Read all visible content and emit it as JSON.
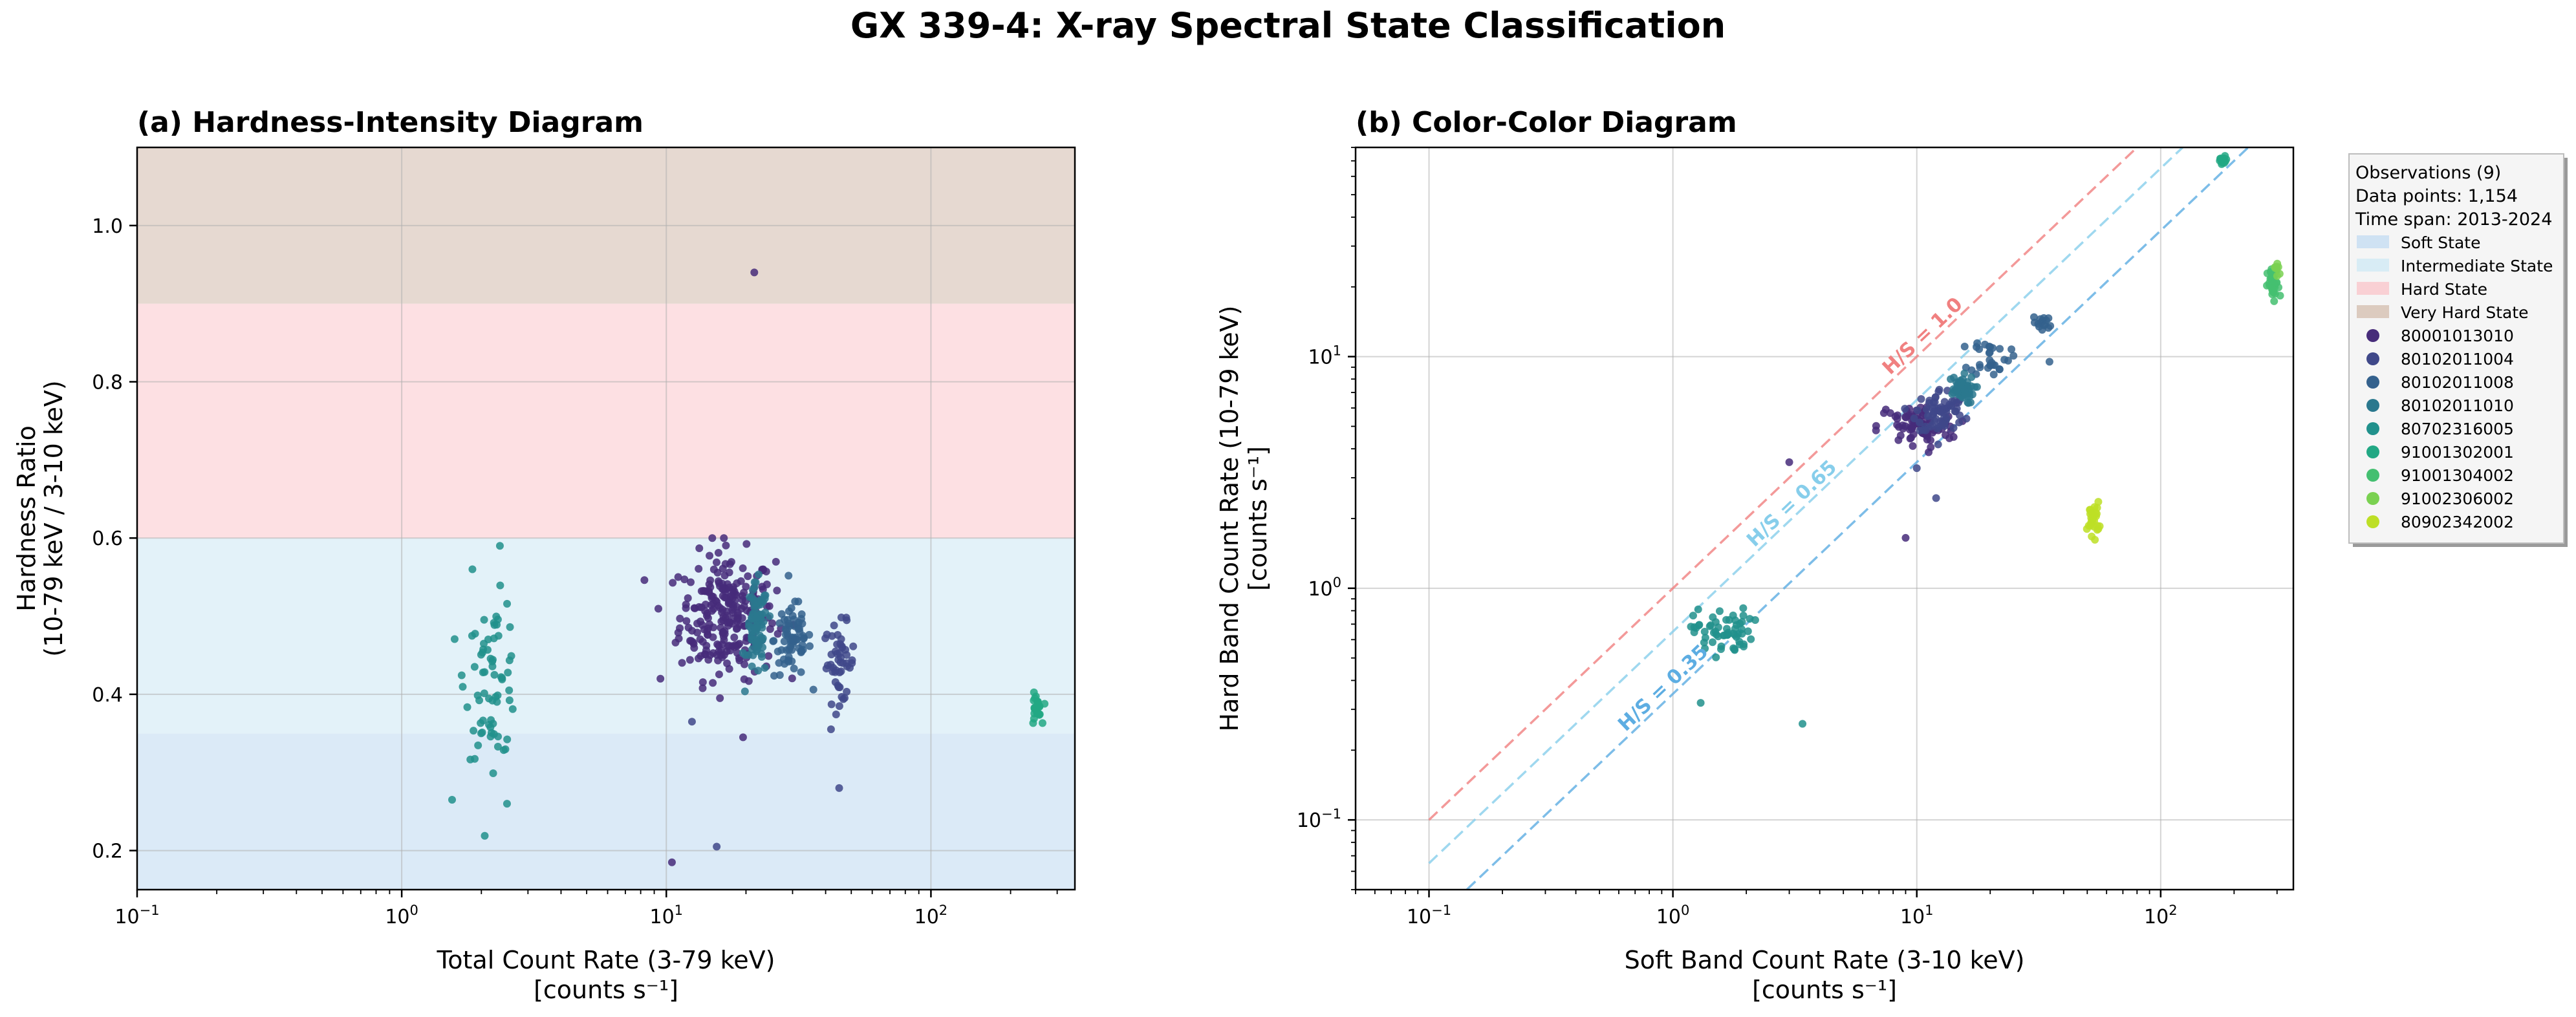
{
  "suptitle": "GX 339-4: X-ray Spectral State Classification",
  "chart_data": [
    {
      "type": "scatter",
      "title": "(a) Hardness-Intensity Diagram",
      "xlabel_line1": "Total Count Rate (3-79 keV)",
      "xlabel_line2": "[counts s⁻¹]",
      "ylabel_line1": "Hardness Ratio",
      "ylabel_line2": "(10-79 keV / 3-10 keV)",
      "xscale": "log",
      "xlim": [
        0.1,
        350
      ],
      "ylim": [
        0.15,
        1.1
      ],
      "xticks": [
        {
          "v": 0.1,
          "b": "10",
          "e": "−1"
        },
        {
          "v": 1,
          "b": "10",
          "e": "0"
        },
        {
          "v": 10,
          "b": "10",
          "e": "1"
        },
        {
          "v": 100,
          "b": "10",
          "e": "2"
        }
      ],
      "yticks": [
        {
          "v": 0.2,
          "label": "0.2"
        },
        {
          "v": 0.4,
          "label": "0.4"
        },
        {
          "v": 0.6,
          "label": "0.6"
        },
        {
          "v": 0.8,
          "label": "0.8"
        },
        {
          "v": 1.0,
          "label": "1.0"
        }
      ],
      "grid": true,
      "state_bands": [
        {
          "name": "Soft State",
          "y0": 0.15,
          "y1": 0.35,
          "color": "#dbeaf7"
        },
        {
          "name": "Intermediate State",
          "y0": 0.35,
          "y1": 0.6,
          "color": "#e3f2f9"
        },
        {
          "name": "Hard State",
          "y0": 0.6,
          "y1": 0.9,
          "color": "#fde0e3"
        },
        {
          "name": "Very Hard State",
          "y0": 0.9,
          "y1": 1.1,
          "color": "#e6d9d1"
        }
      ],
      "clusters": [
        {
          "obsid": "80001013010",
          "x": 17,
          "y": 0.5,
          "sx": 0.09,
          "sy": 0.04,
          "n": 260
        },
        {
          "obsid": "80102011004",
          "x": 45,
          "y": 0.44,
          "sx": 0.03,
          "sy": 0.025,
          "n": 50
        },
        {
          "obsid": "80102011008",
          "x": 30,
          "y": 0.47,
          "sx": 0.035,
          "sy": 0.025,
          "n": 70
        },
        {
          "obsid": "80102011010",
          "x": 22,
          "y": 0.48,
          "sx": 0.02,
          "sy": 0.03,
          "n": 80
        },
        {
          "obsid": "80702316005",
          "x": 2.2,
          "y": 0.42,
          "sx": 0.05,
          "sy": 0.05,
          "n": 70
        },
        {
          "obsid": "91001302001",
          "x": 250,
          "y": 0.38,
          "sx": 0.01,
          "sy": 0.01,
          "n": 25
        }
      ],
      "outliers": [
        {
          "x": 21.5,
          "y": 0.94,
          "obsid": "80001013010"
        },
        {
          "x": 10.5,
          "y": 0.185,
          "obsid": "80001013010"
        },
        {
          "x": 15.5,
          "y": 0.205,
          "obsid": "80102011004"
        },
        {
          "x": 16.5,
          "y": 0.6,
          "obsid": "80001013010"
        },
        {
          "x": 45,
          "y": 0.28,
          "obsid": "80102011004"
        },
        {
          "x": 9.5,
          "y": 0.42,
          "obsid": "80001013010"
        },
        {
          "x": 2.35,
          "y": 0.59,
          "obsid": "80702316005"
        },
        {
          "x": 1.55,
          "y": 0.265,
          "obsid": "80702316005"
        },
        {
          "x": 2.5,
          "y": 0.26,
          "obsid": "80702316005"
        },
        {
          "x": 1.85,
          "y": 0.56,
          "obsid": "80702316005"
        },
        {
          "x": 19.5,
          "y": 0.345,
          "obsid": "80001013010"
        },
        {
          "x": 12.5,
          "y": 0.365,
          "obsid": "80102011004"
        }
      ]
    },
    {
      "type": "scatter",
      "title": "(b) Color-Color Diagram",
      "xlabel_line1": "Soft Band Count Rate (3-10 keV)",
      "xlabel_line2": "[counts s⁻¹]",
      "ylabel_line1": "Hard Band Count Rate (10-79 keV)",
      "ylabel_line2": "[counts s⁻¹]",
      "xscale": "log",
      "yscale": "log",
      "xlim": [
        0.05,
        350
      ],
      "ylim": [
        0.05,
        80
      ],
      "xticks": [
        {
          "v": 0.1,
          "b": "10",
          "e": "−1"
        },
        {
          "v": 1,
          "b": "10",
          "e": "0"
        },
        {
          "v": 10,
          "b": "10",
          "e": "1"
        },
        {
          "v": 100,
          "b": "10",
          "e": "2"
        }
      ],
      "yticks": [
        {
          "v": 0.1,
          "b": "10",
          "e": "−1"
        },
        {
          "v": 1,
          "b": "10",
          "e": "0"
        },
        {
          "v": 10,
          "b": "10",
          "e": "1"
        }
      ],
      "grid": true,
      "ratio_lines": [
        {
          "ratio": 1.0,
          "label": "H/S = 1.0",
          "color": "#f08080",
          "label_x": 11
        },
        {
          "ratio": 0.65,
          "label": "H/S = 0.65",
          "color": "#87ceeb",
          "label_x": 3.2
        },
        {
          "ratio": 0.35,
          "label": "H/S = 0.35",
          "color": "#5dade2",
          "label_x": 0.95
        }
      ],
      "clusters": [
        {
          "obsid": "80001013010",
          "x": 10,
          "y": 5,
          "sx": 0.08,
          "sy": 0.05,
          "n": 80
        },
        {
          "obsid": "80102011004",
          "x": 12.5,
          "y": 5.8,
          "sx": 0.05,
          "sy": 0.05,
          "n": 70
        },
        {
          "obsid": "80102011008",
          "x": 20,
          "y": 10,
          "sx": 0.04,
          "sy": 0.04,
          "n": 30
        },
        {
          "obsid": "80102011010",
          "x": 15,
          "y": 7.2,
          "sx": 0.03,
          "sy": 0.03,
          "n": 50
        },
        {
          "obsid": "80702316005",
          "x": 1.6,
          "y": 0.65,
          "sx": 0.06,
          "sy": 0.05,
          "n": 60
        },
        {
          "obsid": "91001302001",
          "x": 180,
          "y": 70,
          "sx": 0.01,
          "sy": 0.01,
          "n": 20
        },
        {
          "obsid": "91001304002",
          "x": 290,
          "y": 20,
          "sx": 0.012,
          "sy": 0.04,
          "n": 30
        },
        {
          "obsid": "91002306002",
          "x": 300,
          "y": 24,
          "sx": 0.01,
          "sy": 0.02,
          "n": 8
        },
        {
          "obsid": "80902342002",
          "x": 53,
          "y": 2.0,
          "sx": 0.012,
          "sy": 0.035,
          "n": 30
        },
        {
          "obsid": "80102011008",
          "x": 33,
          "y": 14,
          "sx": 0.02,
          "sy": 0.02,
          "n": 15
        }
      ],
      "outliers": [
        {
          "x": 3.0,
          "y": 3.5,
          "obsid": "80001013010"
        },
        {
          "x": 9,
          "y": 1.65,
          "obsid": "80001013010"
        },
        {
          "x": 12,
          "y": 2.45,
          "obsid": "80102011004"
        },
        {
          "x": 3.4,
          "y": 0.26,
          "obsid": "80702316005"
        },
        {
          "x": 1.3,
          "y": 0.32,
          "obsid": "80702316005"
        },
        {
          "x": 35,
          "y": 9.5,
          "obsid": "80102011008"
        },
        {
          "x": 10,
          "y": 3.3,
          "obsid": "80102011004"
        }
      ]
    }
  ],
  "legend": {
    "header": [
      "Observations (9)",
      "Data points: 1,154",
      "Time span: 2013-2024"
    ],
    "placement": "outside-right",
    "state_items": [
      {
        "label": "Soft State",
        "color": "#cfe2f3"
      },
      {
        "label": "Intermediate State",
        "color": "#d8ecf5"
      },
      {
        "label": "Hard State",
        "color": "#f9d0d4"
      },
      {
        "label": "Very Hard State",
        "color": "#dccbbf"
      }
    ],
    "obs_items": [
      {
        "label": "80001013010",
        "color": "#472c7a"
      },
      {
        "label": "80102011004",
        "color": "#3f4889"
      },
      {
        "label": "80102011008",
        "color": "#34618d"
      },
      {
        "label": "80102011010",
        "color": "#2a788e"
      },
      {
        "label": "80702316005",
        "color": "#21918c"
      },
      {
        "label": "91001302001",
        "color": "#22a884"
      },
      {
        "label": "91001304002",
        "color": "#44bf70"
      },
      {
        "label": "91002306002",
        "color": "#7ad151"
      },
      {
        "label": "80902342002",
        "color": "#bddf26"
      }
    ]
  }
}
